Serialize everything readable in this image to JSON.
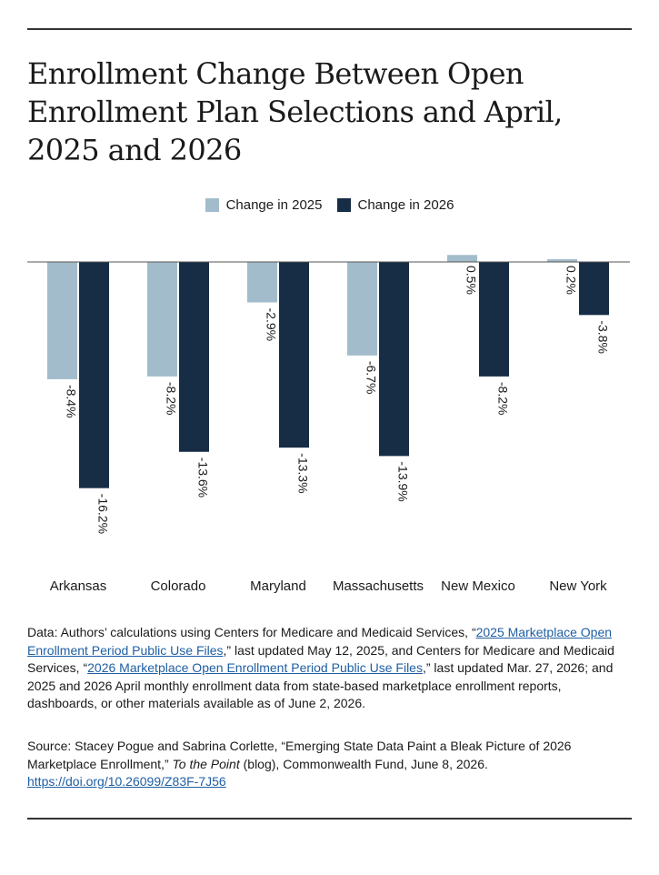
{
  "title": "Enrollment Change Between Open Enrollment Plan Selections and April, 2025 and 2026",
  "colors": {
    "s2025": "#a3bccb",
    "s2026": "#172c45",
    "axis": "#555555",
    "link": "#1f5fa3"
  },
  "chart_data": {
    "type": "bar",
    "title": "Enrollment Change Between Open Enrollment Plan Selections and April, 2025 and 2026",
    "categories": [
      "Arkansas",
      "Colorado",
      "Maryland",
      "Massachusetts",
      "New Mexico",
      "New York"
    ],
    "series": [
      {
        "name": "Change in 2025",
        "values": [
          -8.4,
          -8.2,
          -2.9,
          -6.7,
          0.5,
          0.2
        ]
      },
      {
        "name": "Change in 2026",
        "values": [
          -16.2,
          -13.6,
          -13.3,
          -13.9,
          -8.2,
          -3.8
        ]
      }
    ],
    "value_labels": [
      [
        "-8.4%",
        "-8.2%",
        "-2.9%",
        "-6.7%",
        "0.5%",
        "0.2%"
      ],
      [
        "-16.2%",
        "-13.6%",
        "-13.3%",
        "-13.9%",
        "-8.2%",
        "-3.8%"
      ]
    ],
    "legend_position": "top-center",
    "ylim": [
      -18,
      1
    ]
  },
  "notes": {
    "data_prefix": "Data: Authors’ calculations using Centers for Medicare and Medicaid Services, “",
    "data_link1": "2025 Marketplace Open Enrollment Period Public Use Files",
    "data_mid": ",” last updated May 12, 2025, and Centers for Medicare and Medicaid Services, “",
    "data_link2": "2026 Marketplace Open Enrollment Period Public Use Files",
    "data_suffix": ",” last updated Mar. 27, 2026; and 2025 and 2026 April monthly enrollment data from state-based marketplace enrollment reports, dashboards, or other materials available as of June 2, 2026.",
    "source_prefix": "Source: Stacey Pogue and Sabrina Corlette, “Emerging State Data Paint a Bleak Picture of 2026 Marketplace Enrollment,” ",
    "source_italic": "To the Point",
    "source_suffix": " (blog), Commonwealth Fund, June 8, 2026.",
    "source_link": "https://doi.org/10.26099/Z83F-7J56"
  }
}
